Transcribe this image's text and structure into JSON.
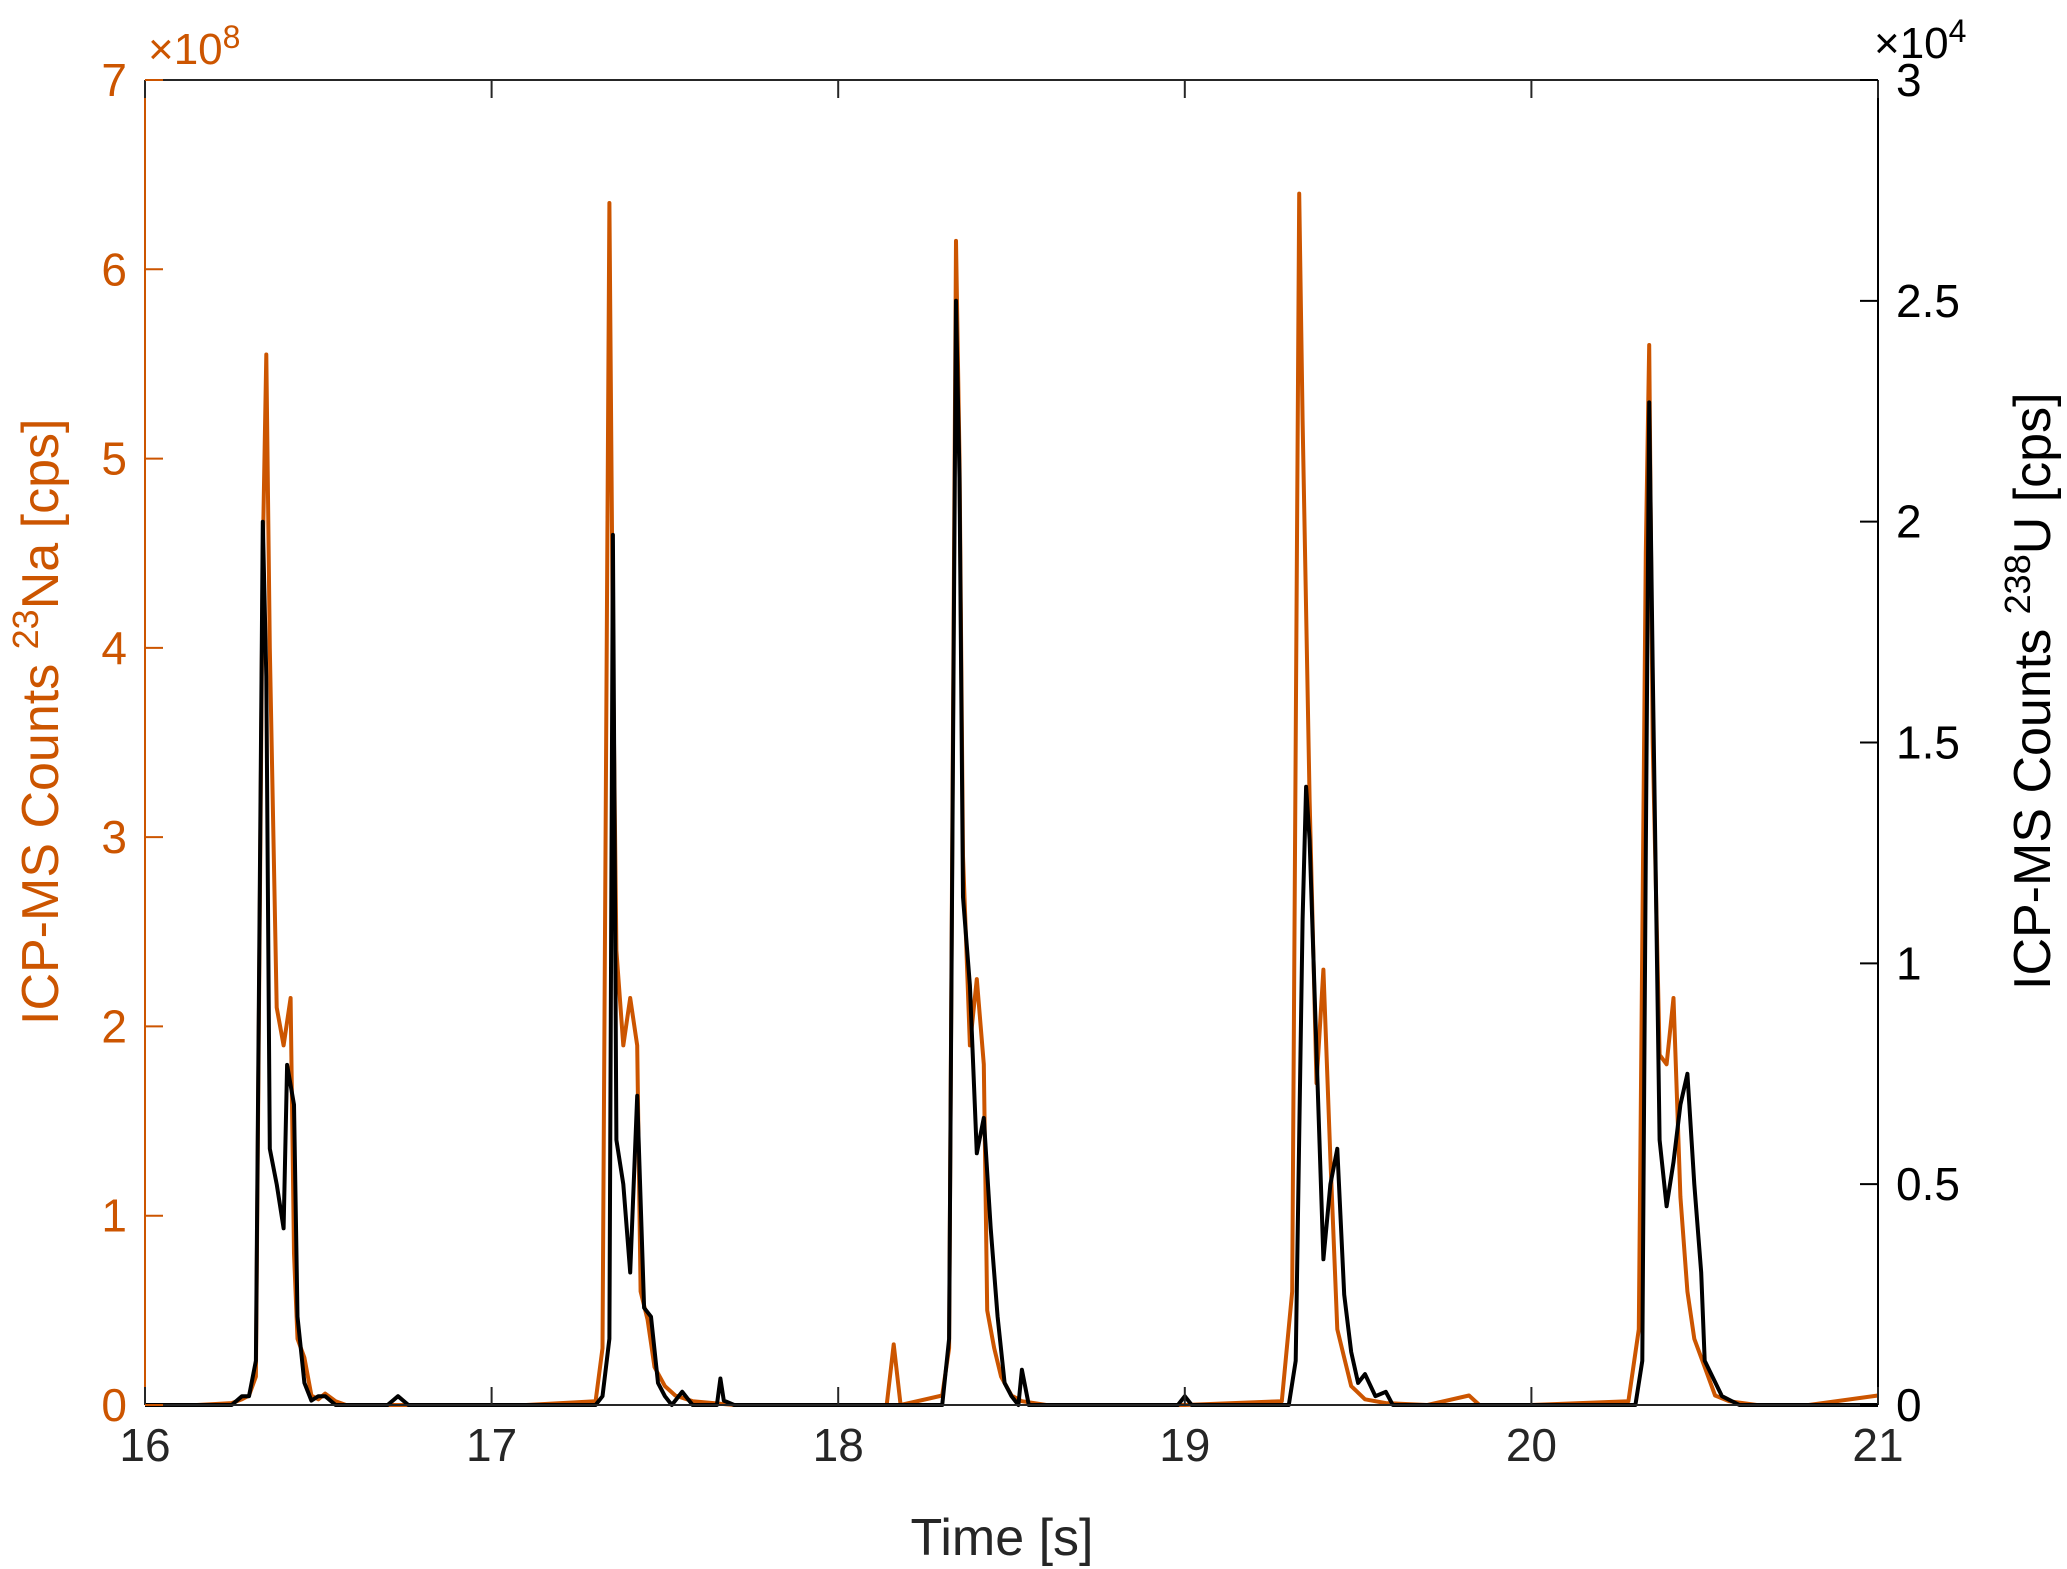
{
  "chart_data": {
    "type": "line",
    "xlabel": "Time [s]",
    "xlim": [
      16,
      21
    ],
    "x_ticks": [
      "16",
      "17",
      "18",
      "19",
      "20",
      "21"
    ],
    "left_axis": {
      "label_prefix": "ICP-MS Counts ",
      "label_sup": "23",
      "label_suffix": "Na [cps]",
      "ylim": [
        0,
        7
      ],
      "ticks": [
        "0",
        "1",
        "2",
        "3",
        "4",
        "5",
        "6",
        "7"
      ],
      "exponent_prefix": "×10",
      "exponent_sup": "8",
      "color": "#CC5500"
    },
    "right_axis": {
      "label_prefix": "ICP-MS Counts ",
      "label_sup": "238",
      "label_suffix": "U [cps]",
      "ylim": [
        0,
        3
      ],
      "ticks": [
        "0",
        "0.5",
        "1",
        "1.5",
        "2",
        "2.5",
        "3"
      ],
      "exponent_prefix": "×10",
      "exponent_sup": "4",
      "color": "#000000"
    },
    "series": [
      {
        "axis": "left",
        "color": "#CC5500",
        "x": [
          16.0,
          16.15,
          16.25,
          16.28,
          16.3,
          16.32,
          16.34,
          16.35,
          16.36,
          16.38,
          16.4,
          16.42,
          16.43,
          16.44,
          16.46,
          16.48,
          16.5,
          16.52,
          16.55,
          16.58,
          16.62,
          16.7,
          16.9,
          17.1,
          17.3,
          17.32,
          17.34,
          17.35,
          17.36,
          17.38,
          17.4,
          17.42,
          17.43,
          17.45,
          17.47,
          17.5,
          17.53,
          17.58,
          17.7,
          18.0,
          18.14,
          18.16,
          18.18,
          18.3,
          18.32,
          18.34,
          18.35,
          18.36,
          18.38,
          18.4,
          18.42,
          18.43,
          18.45,
          18.47,
          18.5,
          18.53,
          18.6,
          18.8,
          19.0,
          19.28,
          19.31,
          19.33,
          19.34,
          19.36,
          19.38,
          19.4,
          19.42,
          19.44,
          19.46,
          19.48,
          19.52,
          19.58,
          19.7,
          19.82,
          19.85,
          20.0,
          20.28,
          20.31,
          20.33,
          20.34,
          20.35,
          20.37,
          20.39,
          20.41,
          20.43,
          20.45,
          20.47,
          20.5,
          20.53,
          20.57,
          20.65,
          20.8,
          21.0
        ],
        "y": [
          0,
          0,
          0.01,
          0.03,
          0.05,
          0.15,
          4.5,
          5.55,
          4.0,
          2.1,
          1.9,
          2.15,
          0.8,
          0.35,
          0.25,
          0.05,
          0.03,
          0.06,
          0.02,
          0,
          0,
          0,
          0,
          0,
          0.02,
          0.3,
          6.35,
          4.0,
          2.4,
          1.9,
          2.15,
          1.9,
          0.6,
          0.45,
          0.2,
          0.1,
          0.05,
          0.02,
          0,
          0,
          0,
          0.32,
          0,
          0.05,
          0.3,
          6.15,
          5.0,
          2.9,
          1.9,
          2.25,
          1.8,
          0.5,
          0.3,
          0.15,
          0.05,
          0.02,
          0,
          0,
          0,
          0.02,
          0.6,
          6.4,
          5.2,
          3.2,
          1.7,
          2.3,
          1.3,
          0.4,
          0.25,
          0.1,
          0.03,
          0.01,
          0,
          0.05,
          0,
          0,
          0.02,
          0.4,
          4.5,
          5.6,
          3.5,
          1.85,
          1.8,
          2.15,
          1.1,
          0.6,
          0.35,
          0.2,
          0.05,
          0.02,
          0,
          0,
          0.05
        ]
      },
      {
        "axis": "right",
        "color": "#000000",
        "x": [
          16.0,
          16.25,
          16.28,
          16.3,
          16.32,
          16.34,
          16.35,
          16.36,
          16.38,
          16.4,
          16.41,
          16.43,
          16.44,
          16.46,
          16.48,
          16.5,
          16.52,
          16.55,
          16.6,
          16.7,
          16.73,
          16.76,
          17.0,
          17.3,
          17.32,
          17.34,
          17.35,
          17.36,
          17.38,
          17.4,
          17.42,
          17.44,
          17.46,
          17.48,
          17.5,
          17.52,
          17.55,
          17.58,
          17.62,
          17.65,
          17.66,
          17.67,
          17.7,
          18.0,
          18.3,
          18.32,
          18.34,
          18.35,
          18.36,
          18.38,
          18.4,
          18.42,
          18.44,
          18.46,
          18.48,
          18.5,
          18.52,
          18.53,
          18.55,
          18.6,
          18.98,
          19.0,
          19.02,
          19.3,
          19.32,
          19.34,
          19.35,
          19.36,
          19.38,
          19.4,
          19.42,
          19.44,
          19.46,
          19.48,
          19.5,
          19.52,
          19.55,
          19.58,
          19.6,
          19.7,
          20.3,
          20.32,
          20.33,
          20.34,
          20.35,
          20.37,
          20.39,
          20.41,
          20.43,
          20.45,
          20.47,
          20.49,
          20.5,
          20.55,
          20.6,
          21.0
        ],
        "y": [
          0,
          0,
          0.02,
          0.02,
          0.1,
          2.0,
          1.65,
          0.58,
          0.5,
          0.4,
          0.77,
          0.68,
          0.2,
          0.05,
          0.01,
          0.02,
          0.02,
          0,
          0,
          0,
          0.02,
          0,
          0,
          0,
          0.02,
          0.15,
          1.97,
          0.6,
          0.5,
          0.3,
          0.7,
          0.22,
          0.2,
          0.05,
          0.02,
          0,
          0.03,
          0,
          0,
          0,
          0.06,
          0.01,
          0,
          0,
          0,
          0.15,
          2.5,
          2.1,
          1.15,
          0.95,
          0.57,
          0.65,
          0.4,
          0.2,
          0.05,
          0.02,
          0,
          0.08,
          0,
          0,
          0,
          0.02,
          0,
          0,
          0.1,
          1.1,
          1.4,
          1.28,
          0.8,
          0.33,
          0.5,
          0.58,
          0.25,
          0.12,
          0.05,
          0.07,
          0.02,
          0.03,
          0,
          0,
          0,
          0.1,
          1.25,
          2.27,
          1.67,
          0.6,
          0.45,
          0.55,
          0.68,
          0.75,
          0.5,
          0.3,
          0.1,
          0.02,
          0,
          0
        ]
      }
    ]
  }
}
